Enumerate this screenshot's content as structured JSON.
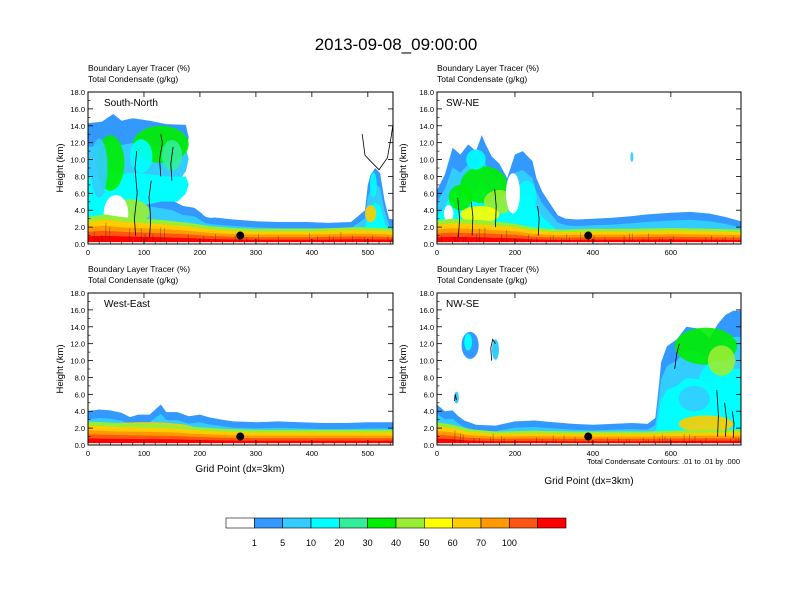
{
  "title": "2013-09-08_09:00:00",
  "panel_header": {
    "line1": "Boundary Layer Tracer    (%)",
    "line2": "Total Condensate    (g/kg)"
  },
  "ylabel": "Height (km)",
  "xlabel": "Grid Point (dx=3km)",
  "contour_note": "Total Condensate Contours: .01 to .01 by .000",
  "colors": {
    "frame": "#000000",
    "marker": "#000000",
    "contour": "#000000"
  },
  "colorbar": {
    "colors": [
      "#ffffff",
      "#3399ff",
      "#33ccff",
      "#00ffff",
      "#33ee99",
      "#00ee00",
      "#99ee33",
      "#ffff00",
      "#ffcc00",
      "#ff9900",
      "#ff5511",
      "#ff0000"
    ],
    "labels": [
      "1",
      "5",
      "10",
      "20",
      "30",
      "40",
      "50",
      "60",
      "70",
      "100"
    ]
  },
  "chart_data": [
    {
      "type": "heatmap",
      "name": "South-North",
      "label": "South-North",
      "xlim": [
        0,
        545
      ],
      "ylim": [
        0,
        18
      ],
      "xticks": [
        "0",
        "100",
        "200",
        "300",
        "400",
        "500"
      ],
      "yticks": [
        "0.0",
        "2.0",
        "4.0",
        "6.0",
        "8.0",
        "10.0",
        "12.0",
        "14.0",
        "16.0",
        "18.0"
      ],
      "marker": {
        "x": 272,
        "y": 1.0
      }
    },
    {
      "type": "heatmap",
      "name": "SW-NE",
      "label": "SW-NE",
      "xlim": [
        0,
        780
      ],
      "ylim": [
        0,
        18
      ],
      "xticks": [
        "0",
        "200",
        "400",
        "600"
      ],
      "yticks": [
        "0.0",
        "2.0",
        "4.0",
        "6.0",
        "8.0",
        "10.0",
        "12.0",
        "14.0",
        "16.0",
        "18.0"
      ],
      "marker": {
        "x": 388,
        "y": 1.0
      }
    },
    {
      "type": "heatmap",
      "name": "West-East",
      "label": "West-East",
      "xlim": [
        0,
        545
      ],
      "ylim": [
        0,
        18
      ],
      "xticks": [
        "0",
        "100",
        "200",
        "300",
        "400",
        "500"
      ],
      "yticks": [
        "0.0",
        "2.0",
        "4.0",
        "6.0",
        "8.0",
        "10.0",
        "12.0",
        "14.0",
        "16.0",
        "18.0"
      ],
      "marker": {
        "x": 272,
        "y": 1.0
      }
    },
    {
      "type": "heatmap",
      "name": "NW-SE",
      "label": "NW-SE",
      "xlim": [
        0,
        780
      ],
      "ylim": [
        0,
        18
      ],
      "xticks": [
        "0",
        "200",
        "400",
        "600"
      ],
      "yticks": [
        "0.0",
        "2.0",
        "4.0",
        "6.0",
        "8.0",
        "10.0",
        "12.0",
        "14.0",
        "16.0",
        "18.0"
      ],
      "marker": {
        "x": 388,
        "y": 1.0
      }
    }
  ]
}
